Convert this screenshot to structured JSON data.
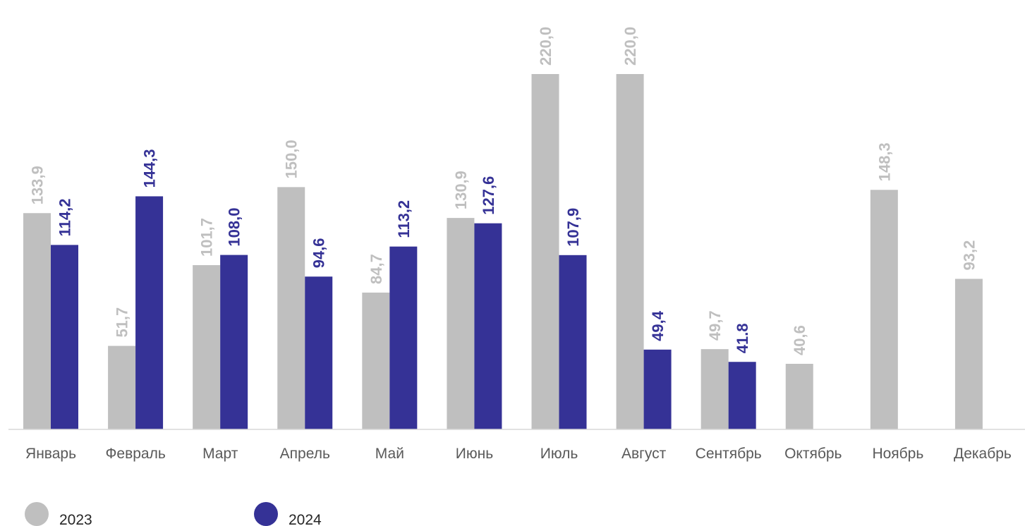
{
  "chart_data": {
    "type": "bar",
    "title": "",
    "xlabel": "",
    "ylabel": "",
    "ylim": [
      0,
      240
    ],
    "grid": false,
    "legend_position": "bottom-left",
    "categories": [
      "Январь",
      "Февраль",
      "Март",
      "Апрель",
      "Май",
      "Июнь",
      "Июль",
      "Август",
      "Сентябрь",
      "Октябрь",
      "Ноябрь",
      "Декабрь"
    ],
    "series": [
      {
        "name": "2023",
        "color": "#bfbfbf",
        "values": [
          133.9,
          51.7,
          101.7,
          150.0,
          84.7,
          130.9,
          220.0,
          220.0,
          49.7,
          40.6,
          148.3,
          93.2
        ],
        "labels": [
          "133,9",
          "51,7",
          "101,7",
          "150,0",
          "84,7",
          "130,9",
          "220,0",
          "220,0",
          "49,7",
          "40,6",
          "148,3",
          "93,2"
        ]
      },
      {
        "name": "2024",
        "color": "#353296",
        "values": [
          114.2,
          144.3,
          108.0,
          94.6,
          113.2,
          127.6,
          107.9,
          49.4,
          41.8,
          null,
          null,
          null
        ],
        "labels": [
          "114,2",
          "144,3",
          "108,0",
          "94,6",
          "113,2",
          "127,6",
          "107,9",
          "49,4",
          "41.8",
          null,
          null,
          null
        ]
      }
    ]
  }
}
